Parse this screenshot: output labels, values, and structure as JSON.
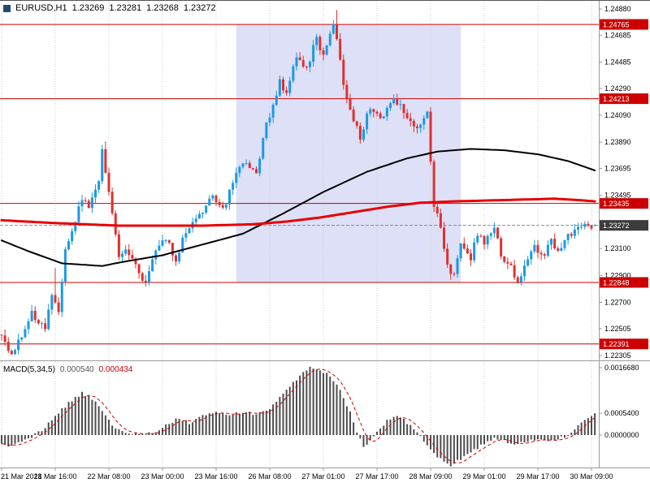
{
  "header": {
    "symbol": "EURUSD,H1",
    "open": "1.23269",
    "high": "1.23281",
    "low": "1.23268",
    "close": "1.23272"
  },
  "indicator": {
    "name": "MACD(5,34,5)",
    "main_value": "0.000540",
    "signal_value": "0.000434"
  },
  "colors": {
    "bull": "#1b99e4",
    "bear": "#e03030",
    "level_line": "#cc0000",
    "level_badge_bg": "#cc0000",
    "level_badge_text": "#ffffff",
    "current_badge_bg": "#3c3c3c",
    "current_line": "#8a8a8a",
    "ma_red": "#e80000",
    "ma_black": "#000000",
    "grid": "#cdcdcd",
    "highlight": "#dde0f6",
    "histogram": "#4d4d4d",
    "signal": "#d40000",
    "axis_text": "#000000",
    "separator": "#9a9a9a"
  },
  "chart_data": [
    {
      "type": "candlestick",
      "symbol": "EURUSD",
      "timeframe": "H1",
      "bars_total": 178,
      "ylim": [
        1.22305,
        1.2488
      ],
      "x_tick_bars": [
        0,
        16,
        32,
        48,
        64,
        80,
        96,
        112,
        128,
        144,
        160,
        176
      ],
      "x_tick_labels": [
        "21 Mar 2018",
        "21 Mar 16:00",
        "22 Mar 08:00",
        "23 Mar 00:00",
        "23 Mar 16:00",
        "26 Mar 08:00",
        "27 Mar 01:00",
        "27 Mar 17:00",
        "28 Mar 09:00",
        "29 Mar 01:00",
        "29 Mar 17:00",
        "30 Mar 09:00"
      ],
      "y_ticks": [
        {
          "value": 1.2488,
          "label": "1.24880"
        },
        {
          "value": 1.24685,
          "label": "1.24685"
        },
        {
          "value": 1.24485,
          "label": "1.24485"
        },
        {
          "value": 1.2429,
          "label": "1.24290"
        },
        {
          "value": 1.2409,
          "label": "1.24090"
        },
        {
          "value": 1.2389,
          "label": "1.23890"
        },
        {
          "value": 1.23695,
          "label": "1.23695"
        },
        {
          "value": 1.23495,
          "label": "1.23495"
        },
        {
          "value": 1.231,
          "label": "1.23100"
        },
        {
          "value": 1.229,
          "label": "1.22900"
        },
        {
          "value": 1.227,
          "label": "1.22700"
        },
        {
          "value": 1.22505,
          "label": "1.22505"
        },
        {
          "value": 1.22305,
          "label": "1.22305"
        }
      ],
      "levels": [
        {
          "value": 1.24765,
          "label": "1.24765"
        },
        {
          "value": 1.24213,
          "label": "1.24213"
        },
        {
          "value": 1.23435,
          "label": "1.23435"
        },
        {
          "value": 1.22848,
          "label": "1.22848"
        },
        {
          "value": 1.22391,
          "label": "1.22391"
        }
      ],
      "current_price": {
        "value": 1.23272,
        "label": "1.23272"
      },
      "current_bar_ohlc": [
        1.23269,
        1.23281,
        1.23268,
        1.23272
      ],
      "highlight_region": {
        "bar_start": 70,
        "bar_end": 137,
        "price_low": 1.22848,
        "price_high": 1.24765
      },
      "price_keypoints": [
        [
          0,
          1.2246
        ],
        [
          4,
          1.2233
        ],
        [
          7,
          1.2243
        ],
        [
          10,
          1.2262
        ],
        [
          14,
          1.225
        ],
        [
          16,
          1.2278
        ],
        [
          18,
          1.2265
        ],
        [
          20,
          1.2308
        ],
        [
          23,
          1.2332
        ],
        [
          25,
          1.2348
        ],
        [
          27,
          1.2338
        ],
        [
          30,
          1.2362
        ],
        [
          31,
          1.2384
        ],
        [
          33,
          1.2352
        ],
        [
          36,
          1.2302
        ],
        [
          38,
          1.2312
        ],
        [
          41,
          1.2296
        ],
        [
          44,
          1.2284
        ],
        [
          47,
          1.2308
        ],
        [
          50,
          1.2318
        ],
        [
          53,
          1.2302
        ],
        [
          56,
          1.2324
        ],
        [
          60,
          1.2336
        ],
        [
          64,
          1.2348
        ],
        [
          67,
          1.2338
        ],
        [
          70,
          1.236
        ],
        [
          73,
          1.2374
        ],
        [
          77,
          1.2366
        ],
        [
          80,
          1.2402
        ],
        [
          84,
          1.2434
        ],
        [
          86,
          1.2424
        ],
        [
          89,
          1.2452
        ],
        [
          92,
          1.2442
        ],
        [
          95,
          1.2468
        ],
        [
          97,
          1.2452
        ],
        [
          100,
          1.2478
        ],
        [
          103,
          1.2434
        ],
        [
          105,
          1.2412
        ],
        [
          108,
          1.2392
        ],
        [
          111,
          1.2416
        ],
        [
          114,
          1.2406
        ],
        [
          118,
          1.2422
        ],
        [
          121,
          1.2412
        ],
        [
          125,
          1.24
        ],
        [
          128,
          1.241
        ],
        [
          130,
          1.2342
        ],
        [
          132,
          1.2328
        ],
        [
          134,
          1.2296
        ],
        [
          136,
          1.229
        ],
        [
          138,
          1.2312
        ],
        [
          141,
          1.2302
        ],
        [
          143,
          1.2322
        ],
        [
          145,
          1.2312
        ],
        [
          148,
          1.2326
        ],
        [
          150,
          1.2306
        ],
        [
          153,
          1.2296
        ],
        [
          155,
          1.2286
        ],
        [
          158,
          1.2302
        ],
        [
          160,
          1.2312
        ],
        [
          162,
          1.2303
        ],
        [
          165,
          1.2316
        ],
        [
          167,
          1.2309
        ],
        [
          170,
          1.232
        ],
        [
          173,
          1.2326
        ],
        [
          177,
          1.23272
        ]
      ],
      "forced_wick_highs": [
        [
          16,
          1.22955
        ],
        [
          31,
          1.23895
        ],
        [
          100,
          1.24872
        ]
      ],
      "ma_fast_red_keypoints": [
        [
          0,
          1.2331
        ],
        [
          15,
          1.2329
        ],
        [
          35,
          1.2327
        ],
        [
          60,
          1.2327
        ],
        [
          75,
          1.2328
        ],
        [
          85,
          1.233
        ],
        [
          95,
          1.2333
        ],
        [
          105,
          1.2337
        ],
        [
          115,
          1.2341
        ],
        [
          125,
          1.2344
        ],
        [
          135,
          1.2345
        ],
        [
          150,
          1.2346
        ],
        [
          165,
          1.2347
        ],
        [
          172,
          1.2346
        ],
        [
          177,
          1.2345
        ]
      ],
      "ma_slow_black_keypoints": [
        [
          0,
          1.2316
        ],
        [
          8,
          1.2308
        ],
        [
          18,
          1.2299
        ],
        [
          30,
          1.2297
        ],
        [
          36,
          1.23
        ],
        [
          48,
          1.2305
        ],
        [
          60,
          1.2313
        ],
        [
          72,
          1.2321
        ],
        [
          84,
          1.2336
        ],
        [
          96,
          1.2352
        ],
        [
          109,
          1.2367
        ],
        [
          121,
          1.2377
        ],
        [
          130,
          1.2382
        ],
        [
          140,
          1.2384
        ],
        [
          150,
          1.2383
        ],
        [
          160,
          1.238
        ],
        [
          169,
          1.2375
        ],
        [
          177,
          1.2368
        ]
      ]
    },
    {
      "type": "macd_histogram",
      "name": "MACD(5,34,5)",
      "signal_sma_period": 5,
      "current_main": 0.00054,
      "current_signal": 0.000434,
      "y_ticks": [
        {
          "value": 0.001668,
          "label": "0.0016680"
        },
        {
          "value": 0.00054,
          "label": "0.0005400"
        },
        {
          "value": 0.0,
          "label": "0.0000000"
        }
      ],
      "main_keypoints": [
        [
          0,
          -0.00025
        ],
        [
          2,
          -0.0003
        ],
        [
          5,
          -0.00018
        ],
        [
          9,
          -4e-05
        ],
        [
          12,
          0.00012
        ],
        [
          16,
          0.00045
        ],
        [
          20,
          0.0008
        ],
        [
          24,
          0.00105
        ],
        [
          28,
          0.00085
        ],
        [
          31,
          0.0005
        ],
        [
          34,
          0.00015
        ],
        [
          38,
          4e-05
        ],
        [
          42,
          2e-05
        ],
        [
          46,
          8e-05
        ],
        [
          50,
          0.0003
        ],
        [
          53,
          0.00042
        ],
        [
          56,
          0.0003
        ],
        [
          60,
          0.00048
        ],
        [
          64,
          0.0006
        ],
        [
          68,
          0.0005
        ],
        [
          72,
          0.00058
        ],
        [
          76,
          0.00052
        ],
        [
          80,
          0.00065
        ],
        [
          83,
          0.00095
        ],
        [
          86,
          0.0012
        ],
        [
          89,
          0.00148
        ],
        [
          92,
          0.00168
        ],
        [
          95,
          0.00158
        ],
        [
          98,
          0.00148
        ],
        [
          101,
          0.00115
        ],
        [
          104,
          0.00055
        ],
        [
          106,
          5e-05
        ],
        [
          108,
          -0.0003
        ],
        [
          110,
          -0.00012
        ],
        [
          112,
          0.0001
        ],
        [
          115,
          0.00035
        ],
        [
          117,
          0.00048
        ],
        [
          120,
          0.00038
        ],
        [
          123,
          0.00015
        ],
        [
          126,
          -0.00015
        ],
        [
          129,
          -0.00045
        ],
        [
          132,
          -0.00068
        ],
        [
          134,
          -0.00075
        ],
        [
          137,
          -0.0006
        ],
        [
          140,
          -0.00042
        ],
        [
          144,
          -0.00022
        ],
        [
          147,
          -8e-05
        ],
        [
          150,
          -0.00015
        ],
        [
          153,
          -0.00022
        ],
        [
          156,
          -0.00018
        ],
        [
          159,
          -0.0001
        ],
        [
          162,
          -0.00014
        ],
        [
          165,
          -0.0001
        ],
        [
          168,
          -4e-05
        ],
        [
          170,
          6e-05
        ],
        [
          173,
          0.0003
        ],
        [
          176,
          0.0005
        ],
        [
          177,
          0.00054
        ]
      ]
    }
  ]
}
